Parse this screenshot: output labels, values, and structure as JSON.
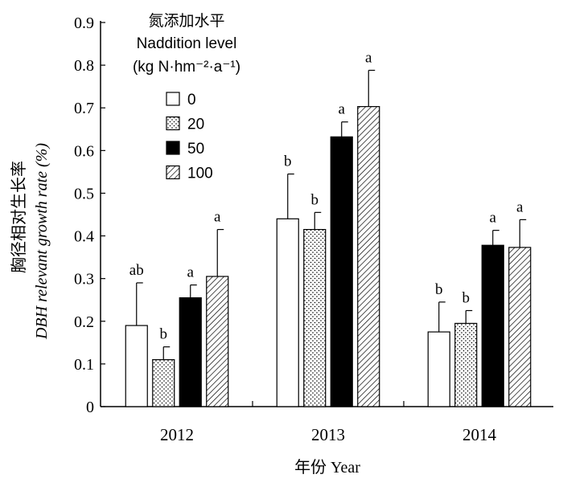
{
  "chart_data": {
    "type": "bar",
    "categories": [
      "2012",
      "2013",
      "2014"
    ],
    "series": [
      {
        "name": "0",
        "values": [
          0.19,
          0.44,
          0.175
        ],
        "errors": [
          0.1,
          0.105,
          0.07
        ],
        "letters": [
          "ab",
          "b",
          "b"
        ],
        "pattern": "open"
      },
      {
        "name": "20",
        "values": [
          0.11,
          0.415,
          0.195
        ],
        "errors": [
          0.03,
          0.04,
          0.03
        ],
        "letters": [
          "b",
          "b",
          "b"
        ],
        "pattern": "dots"
      },
      {
        "name": "50",
        "values": [
          0.255,
          0.632,
          0.378
        ],
        "errors": [
          0.03,
          0.035,
          0.035
        ],
        "letters": [
          "a",
          "a",
          "a"
        ],
        "pattern": "solid"
      },
      {
        "name": "100",
        "values": [
          0.305,
          0.703,
          0.373
        ],
        "errors": [
          0.11,
          0.085,
          0.065
        ],
        "letters": [
          "a",
          "a",
          "a"
        ],
        "pattern": "hatch"
      }
    ],
    "ylim": [
      0,
      0.9
    ],
    "yticks": [
      "0",
      "0.1",
      "0.2",
      "0.3",
      "0.4",
      "0.5",
      "0.6",
      "0.7",
      "0.8",
      "0.9"
    ],
    "ylabel_cn": "胸径相对生长率",
    "ylabel_en": "DBH relevant growth rate (%)",
    "xlabel": "年份 Year",
    "legend": {
      "title_cn": "氮添加水平",
      "title_en": "Naddition level",
      "unit": "(kg N·hm⁻²·a⁻¹)",
      "position": "top-left"
    }
  }
}
